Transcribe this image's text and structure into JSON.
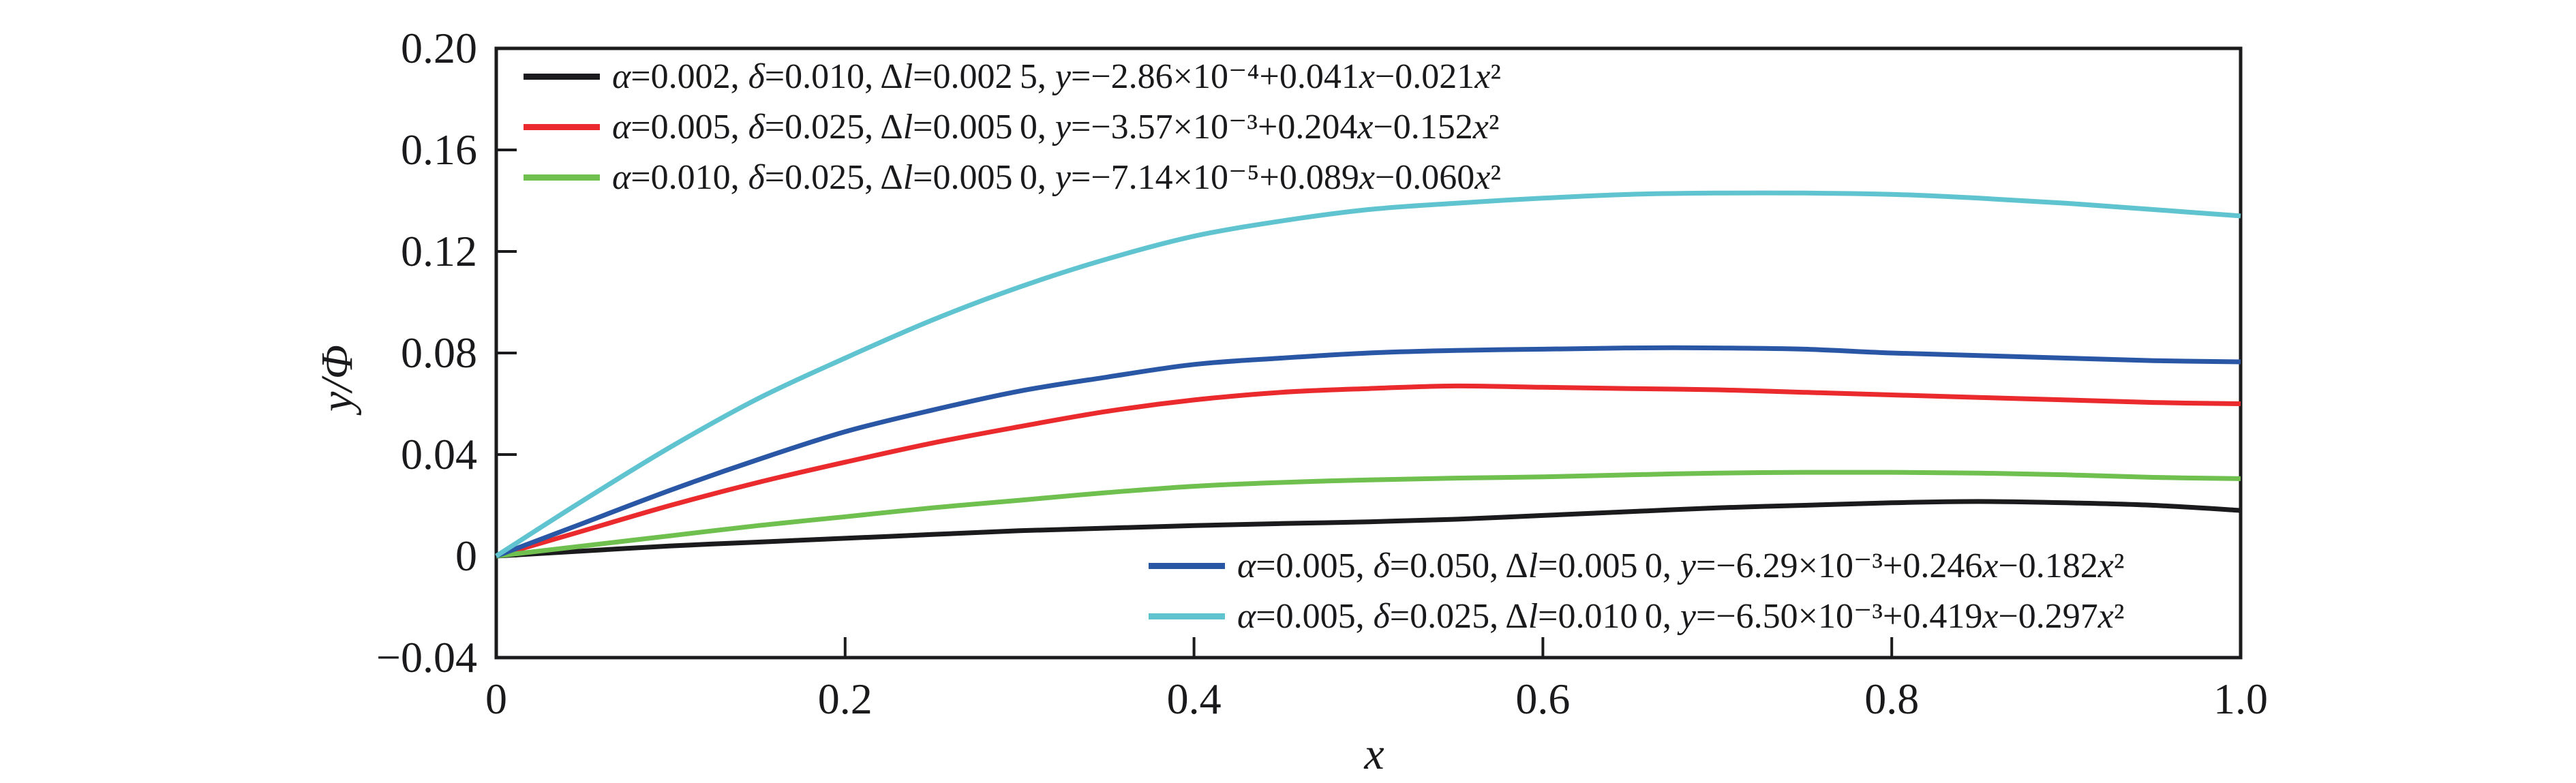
{
  "figure": {
    "background": "#ffffff",
    "axis_color": "#1b1b1d"
  },
  "chart_data": {
    "type": "line",
    "title": "",
    "xlabel": "x",
    "ylabel": "y/Φ",
    "xlim": [
      0,
      1.0
    ],
    "ylim": [
      -0.04,
      0.2
    ],
    "grid": false,
    "legend_positions": [
      "inside top-left (3 entries)",
      "inside bottom-right (2 entries)"
    ],
    "x_ticks": [
      {
        "value": 0,
        "label": "0"
      },
      {
        "value": 0.2,
        "label": "0.2"
      },
      {
        "value": 0.4,
        "label": "0.4"
      },
      {
        "value": 0.6,
        "label": "0.6"
      },
      {
        "value": 0.8,
        "label": "0.8"
      },
      {
        "value": 1.0,
        "label": "1.0"
      }
    ],
    "y_ticks": [
      {
        "value": 0.2,
        "label": "0.20"
      },
      {
        "value": 0.16,
        "label": "0.16"
      },
      {
        "value": 0.12,
        "label": "0.12"
      },
      {
        "value": 0.08,
        "label": "0.08"
      },
      {
        "value": 0.04,
        "label": "0.04"
      },
      {
        "value": 0,
        "label": "0"
      },
      {
        "value": -0.04,
        "label": "−0.04"
      }
    ],
    "x_shared": [
      0,
      0.05,
      0.1,
      0.15,
      0.2,
      0.25,
      0.3,
      0.35,
      0.4,
      0.45,
      0.5,
      0.55,
      0.6,
      0.65,
      0.7,
      0.75,
      0.8,
      0.85,
      0.9,
      0.95,
      1.0
    ],
    "series": [
      {
        "name": "black-curve",
        "color": "#1b1b1d",
        "legend_block": "top",
        "alpha": "0.002",
        "delta": "0.010",
        "delta_l": "0.002 5",
        "fit": "y=−2.86×10⁻⁴+0.041x−0.021x²",
        "legend": "α=0.002, δ=0.010, Δl=0.002 5, y=−2.86×10⁻⁴+0.041x−0.021x²",
        "y": [
          0,
          0.002,
          0.004,
          0.0055,
          0.007,
          0.0085,
          0.01,
          0.011,
          0.012,
          0.0128,
          0.0135,
          0.0145,
          0.016,
          0.0175,
          0.019,
          0.02,
          0.021,
          0.0215,
          0.021,
          0.02,
          0.018
        ]
      },
      {
        "name": "red-curve",
        "color": "#ea2a2c",
        "legend_block": "top",
        "alpha": "0.005",
        "delta": "0.025",
        "delta_l": "0.005 0",
        "fit": "y=−3.57×10⁻³+0.204x−0.152x²",
        "legend": "α=0.005, δ=0.025, Δl=0.005 0, y=−3.57×10⁻³+0.204x−0.152x²",
        "y": [
          0,
          0.01,
          0.02,
          0.029,
          0.037,
          0.0445,
          0.051,
          0.057,
          0.0615,
          0.0645,
          0.066,
          0.067,
          0.0665,
          0.066,
          0.0655,
          0.0645,
          0.0635,
          0.0625,
          0.0615,
          0.0605,
          0.06
        ]
      },
      {
        "name": "green-curve",
        "color": "#6fc04e",
        "legend_block": "top",
        "alpha": "0.010",
        "delta": "0.025",
        "delta_l": "0.005 0",
        "fit": "y=−7.14×10⁻⁵+0.089x−0.060x²",
        "legend": "α=0.010, δ=0.025, Δl=0.005 0, y=−7.14×10⁻⁵+0.089x−0.060x²",
        "y": [
          0,
          0.004,
          0.008,
          0.012,
          0.0155,
          0.019,
          0.022,
          0.025,
          0.0275,
          0.029,
          0.03,
          0.0307,
          0.0312,
          0.032,
          0.0327,
          0.033,
          0.033,
          0.0327,
          0.032,
          0.031,
          0.0305
        ]
      },
      {
        "name": "blue-curve",
        "color": "#2a57a5",
        "legend_block": "bottom",
        "alpha": "0.005",
        "delta": "0.050",
        "delta_l": "0.005 0",
        "fit": "y=−6.29×10⁻³+0.246x−0.182x²",
        "legend": "α=0.005, δ=0.050, Δl=0.005 0, y=−6.29×10⁻³+0.246x−0.182x²",
        "y": [
          0,
          0.013,
          0.026,
          0.038,
          0.049,
          0.0575,
          0.065,
          0.0705,
          0.0755,
          0.078,
          0.08,
          0.081,
          0.0815,
          0.082,
          0.082,
          0.0815,
          0.08,
          0.079,
          0.078,
          0.077,
          0.0765
        ]
      },
      {
        "name": "cyan-curve",
        "color": "#5fc4cf",
        "legend_block": "bottom",
        "alpha": "0.005",
        "delta": "0.025",
        "delta_l": "0.010 0",
        "fit": "y=−6.50×10⁻³+0.419x−0.297x²",
        "legend": "α=0.005, δ=0.025, Δl=0.010 0, y=−6.50×10⁻³+0.419x−0.297x²",
        "y": [
          0,
          0.022,
          0.043,
          0.062,
          0.078,
          0.093,
          0.106,
          0.117,
          0.126,
          0.132,
          0.1365,
          0.139,
          0.141,
          0.1425,
          0.143,
          0.143,
          0.1425,
          0.141,
          0.139,
          0.1365,
          0.134
        ]
      }
    ]
  }
}
